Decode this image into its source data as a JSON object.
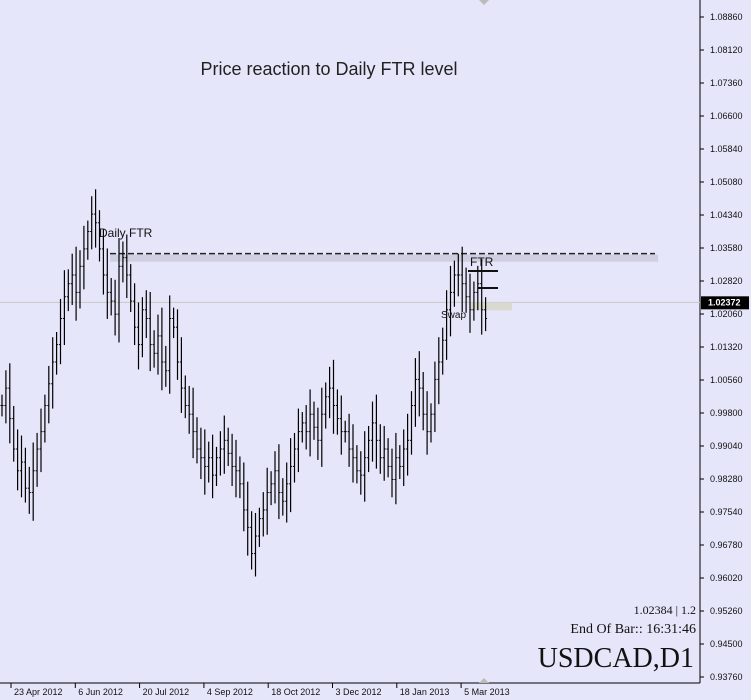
{
  "chart_data": {
    "type": "ohlc",
    "title": "Price reaction to Daily FTR level",
    "symbol_label": "USDCAD,D1",
    "info_line1": "1.02384 | 1.2",
    "info_line2": "End Of Bar:: 16:31:46",
    "current_price": "1.02372",
    "current_price_value": 1.02372,
    "ylim": [
      0.9376,
      1.0893
    ],
    "y_ticks": [
      "1.08860",
      "1.08120",
      "1.07360",
      "1.06600",
      "1.05840",
      "1.05080",
      "1.04340",
      "1.03580",
      "1.02820",
      "1.02060",
      "1.01320",
      "1.00560",
      "0.99800",
      "0.99040",
      "0.98280",
      "0.97540",
      "0.96780",
      "0.96020",
      "0.95260",
      "0.94500",
      "0.93760"
    ],
    "x_ticks": [
      "23 Apr 2012",
      "6 Jun 2012",
      "20 Jul 2012",
      "4 Sep 2012",
      "18 Oct 2012",
      "3 Dec 2012",
      "18 Jan 2013",
      "5 Mar 2013"
    ],
    "annotations": {
      "daily_ftr_label": "Daily FTR",
      "ftr_label": "FTR",
      "swap_label": "Swap",
      "ftr_level": 1.0349
    },
    "series": [
      {
        "name": "USDCAD",
        "values": [
          1.0,
          1.004,
          0.997,
          0.99,
          0.985,
          0.987,
          0.981,
          0.98,
          0.985,
          0.99,
          0.994,
          1.0,
          1.005,
          1.01,
          1.014,
          1.02,
          1.025,
          1.028,
          1.03,
          1.026,
          1.032,
          1.036,
          1.04,
          1.044,
          1.042,
          1.036,
          1.03,
          1.026,
          1.024,
          1.021,
          1.032,
          1.034,
          1.03,
          1.024,
          1.018,
          1.014,
          1.022,
          1.02,
          1.014,
          1.012,
          1.016,
          1.01,
          1.008,
          1.02,
          1.018,
          1.01,
          1.004,
          1.0,
          0.998,
          0.994,
          0.99,
          0.988,
          0.986,
          0.988,
          0.984,
          0.988,
          0.99,
          0.992,
          0.989,
          0.986,
          0.985,
          0.982,
          0.976,
          0.972,
          0.966,
          0.97,
          0.974,
          0.976,
          0.98,
          0.982,
          0.985,
          0.98,
          0.978,
          0.982,
          0.986,
          0.99,
          0.994,
          0.996,
          0.994,
          0.998,
          0.995,
          0.992,
          0.998,
          1.002,
          1.004,
          1.0,
          0.997,
          0.994,
          0.994,
          0.99,
          0.988,
          0.985,
          0.984,
          0.988,
          0.992,
          0.996,
          0.992,
          0.988,
          0.99,
          0.986,
          0.983,
          0.988,
          0.986,
          0.99,
          0.992,
          1.0,
          1.006,
          1.004,
          0.998,
          0.994,
          0.998,
          1.006,
          1.01,
          1.015,
          1.022,
          1.026,
          1.03,
          1.03,
          1.028,
          1.025,
          1.022,
          1.026,
          1.028,
          1.022,
          1.02
        ]
      }
    ]
  }
}
